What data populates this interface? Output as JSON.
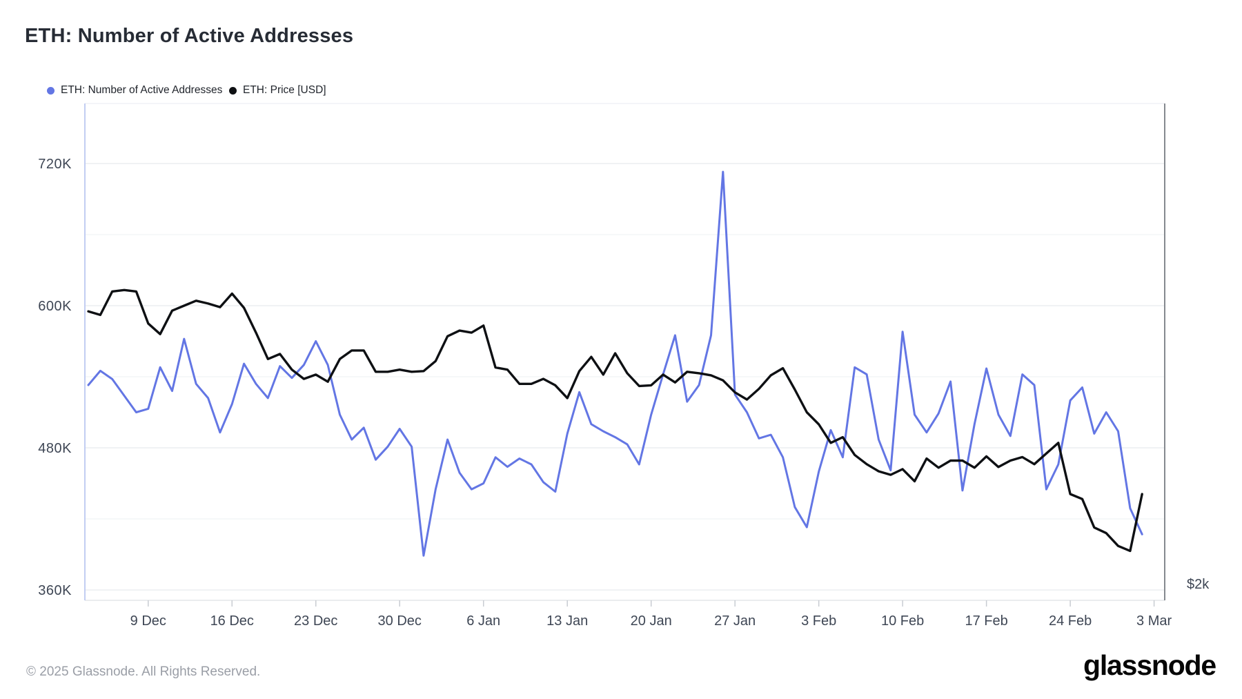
{
  "header": {
    "title": "ETH: Number of Active Addresses"
  },
  "legend": [
    {
      "label": "ETH: Number of Active Addresses",
      "color": "#6376e4"
    },
    {
      "label": "ETH: Price [USD]",
      "color": "#0e1013"
    }
  ],
  "footer": {
    "copyright": "© 2025 Glassnode. All Rights Reserved.",
    "logo_text": "glassnode"
  },
  "colors": {
    "background": "#ffffff",
    "addresses_line": "#6376e4",
    "price_line": "#0e1013",
    "grid_major": "#ebedf0",
    "grid_minor": "#f4f5f7",
    "border_left": "#c2cdf2",
    "border_right": "#85898f",
    "border_bottom": "#e3e5e9",
    "border_top": "#f1f2f5",
    "tick_mark": "#c8ccd2",
    "axis_label": "#3e4654"
  },
  "chart_data": {
    "type": "line",
    "title": "ETH: Number of Active Addresses",
    "grid": "horizontal gridlines only",
    "legend_position": "top-left",
    "x": {
      "dates": [
        "4 Dec",
        "5 Dec",
        "6 Dec",
        "7 Dec",
        "8 Dec",
        "9 Dec",
        "10 Dec",
        "11 Dec",
        "12 Dec",
        "13 Dec",
        "14 Dec",
        "15 Dec",
        "16 Dec",
        "17 Dec",
        "18 Dec",
        "19 Dec",
        "20 Dec",
        "21 Dec",
        "22 Dec",
        "23 Dec",
        "24 Dec",
        "25 Dec",
        "26 Dec",
        "27 Dec",
        "28 Dec",
        "29 Dec",
        "30 Dec",
        "31 Dec",
        "1 Jan",
        "2 Jan",
        "3 Jan",
        "4 Jan",
        "5 Jan",
        "6 Jan",
        "7 Jan",
        "8 Jan",
        "9 Jan",
        "10 Jan",
        "11 Jan",
        "12 Jan",
        "13 Jan",
        "14 Jan",
        "15 Jan",
        "16 Jan",
        "17 Jan",
        "18 Jan",
        "19 Jan",
        "20 Jan",
        "21 Jan",
        "22 Jan",
        "23 Jan",
        "24 Jan",
        "25 Jan",
        "26 Jan",
        "27 Jan",
        "28 Jan",
        "29 Jan",
        "30 Jan",
        "31 Jan",
        "1 Feb",
        "2 Feb",
        "3 Feb",
        "4 Feb",
        "5 Feb",
        "6 Feb",
        "7 Feb",
        "8 Feb",
        "9 Feb",
        "10 Feb",
        "11 Feb",
        "12 Feb",
        "13 Feb",
        "14 Feb",
        "15 Feb",
        "16 Feb",
        "17 Feb",
        "18 Feb",
        "19 Feb",
        "20 Feb",
        "21 Feb",
        "22 Feb",
        "23 Feb",
        "24 Feb",
        "25 Feb",
        "26 Feb",
        "27 Feb",
        "28 Feb",
        "1 Mar",
        "2 Mar"
      ],
      "tick_labels": [
        "9 Dec",
        "16 Dec",
        "23 Dec",
        "30 Dec",
        "6 Jan",
        "13 Jan",
        "20 Jan",
        "27 Jan",
        "3 Feb",
        "10 Feb",
        "17 Feb",
        "24 Feb",
        "3 Mar"
      ],
      "tick_day_offsets": [
        5,
        12,
        19,
        26,
        33,
        40,
        47,
        54,
        61,
        68,
        75,
        82,
        89
      ]
    },
    "y_left": {
      "tick_labels": [
        "720K",
        "600K",
        "480K",
        "360K"
      ],
      "tick_values_k": [
        720,
        600,
        480,
        360
      ],
      "minor_gridlines_k": [
        660,
        540,
        420
      ],
      "range_k": [
        349,
        771
      ]
    },
    "y_right": {
      "tick_labels": [
        "$2k"
      ],
      "note": "only $2k tick visible; $2k aligned with 360K gridline, $1k per 120K of left axis"
    },
    "series": [
      {
        "name": "ETH: Number of Active Addresses",
        "axis": "left",
        "unit": "addresses (thousands)",
        "color": "#6376e4",
        "values_k": [
          533,
          545,
          538,
          524,
          510,
          513,
          548,
          528,
          572,
          534,
          522,
          493,
          517,
          551,
          534,
          522,
          549,
          539,
          550,
          570,
          550,
          508,
          487,
          497,
          470,
          481,
          496,
          481,
          389,
          445,
          487,
          459,
          445,
          450,
          472,
          464,
          471,
          466,
          451,
          443,
          492,
          527,
          500,
          494,
          489,
          483,
          466,
          508,
          542,
          575,
          519,
          533,
          575,
          713,
          525,
          510,
          488,
          491,
          472,
          430,
          413,
          460,
          495,
          472,
          548,
          542,
          487,
          461,
          578,
          508,
          493,
          509,
          536,
          444,
          500,
          547,
          508,
          490,
          542,
          533,
          445,
          466,
          520,
          531,
          492,
          510,
          494,
          429,
          407
        ]
      },
      {
        "name": "ETH: Price [USD]",
        "axis": "right",
        "unit": "USD",
        "color": "#0e1013",
        "values_usd": [
          3960,
          3935,
          4100,
          4110,
          4100,
          3875,
          3800,
          3965,
          4000,
          4035,
          4015,
          3990,
          4085,
          3985,
          3810,
          3625,
          3660,
          3550,
          3485,
          3515,
          3465,
          3625,
          3685,
          3685,
          3535,
          3535,
          3550,
          3535,
          3540,
          3610,
          3785,
          3825,
          3810,
          3860,
          3565,
          3550,
          3450,
          3450,
          3485,
          3440,
          3350,
          3540,
          3640,
          3515,
          3665,
          3525,
          3435,
          3440,
          3515,
          3460,
          3535,
          3525,
          3510,
          3475,
          3390,
          3340,
          3415,
          3510,
          3560,
          3410,
          3250,
          3165,
          3035,
          3075,
          2950,
          2885,
          2835,
          2810,
          2850,
          2765,
          2925,
          2860,
          2910,
          2910,
          2860,
          2940,
          2865,
          2910,
          2935,
          2885,
          2960,
          3035,
          2675,
          2640,
          2440,
          2400,
          2310,
          2275,
          2675
        ]
      }
    ]
  }
}
